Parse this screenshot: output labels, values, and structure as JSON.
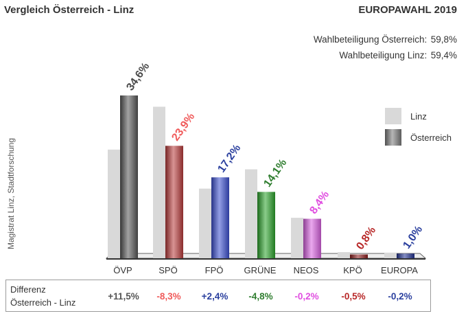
{
  "header": {
    "title_left": "Vergleich Österreich - Linz",
    "title_right": "EUROPAWAHL 2019"
  },
  "turnout": {
    "austria_label": "Wahlbeteiligung Österreich:",
    "austria_value": "59,8%",
    "linz_label": "Wahlbeteiligung Linz:",
    "linz_value": "59,4%"
  },
  "source": "Magistrat Linz, Stadtforschung",
  "legend": {
    "linz": "Linz",
    "austria": "Österreich"
  },
  "colors": {
    "linz_bar": "#d9d9d9",
    "oevp": "#555555",
    "spoe": "#f05a5a",
    "fpoe": "#2a3f9e",
    "gruene": "#2f7d2f",
    "neos": "#e04de0",
    "kpoe": "#b82828",
    "europa": "#2a3f9e"
  },
  "chart_data": {
    "type": "bar",
    "title": "",
    "categories": [
      "ÖVP",
      "SPÖ",
      "FPÖ",
      "GRÜNE",
      "NEOS",
      "KPÖ",
      "EUROPA"
    ],
    "series": [
      {
        "name": "Linz",
        "values": [
          23.1,
          32.2,
          14.8,
          18.9,
          8.6,
          1.3,
          1.2
        ]
      },
      {
        "name": "Österreich",
        "values": [
          34.6,
          23.9,
          17.2,
          14.1,
          8.4,
          0.8,
          1.0
        ]
      }
    ],
    "value_labels": [
      "34,6%",
      "23,9%",
      "17,2%",
      "14,1%",
      "8,4%",
      "0,8%",
      "1,0%"
    ],
    "label_colors": [
      "#4a4a4a",
      "#f05a5a",
      "#2a3f9e",
      "#2f7d2f",
      "#e04de0",
      "#b82828",
      "#2a3f9e"
    ],
    "bar_colors": [
      "#555555",
      "#b83a3a",
      "#3a4fd0",
      "#2aa22a",
      "#d860e0",
      "#8a1a1a",
      "#1f2f90"
    ],
    "ylim": [
      0,
      35
    ],
    "legend_position": "right",
    "grid": false
  },
  "difference": {
    "label_line1": "Differenz",
    "label_line2": "Österreich - Linz",
    "values": [
      "+11,5%",
      "-8,3%",
      "+2,4%",
      "-4,8%",
      "-0,2%",
      "-0,5%",
      "-0,2%"
    ],
    "colors": [
      "#555555",
      "#f05a5a",
      "#2a3f9e",
      "#2f7d2f",
      "#e04de0",
      "#b82828",
      "#2a3f9e"
    ]
  }
}
